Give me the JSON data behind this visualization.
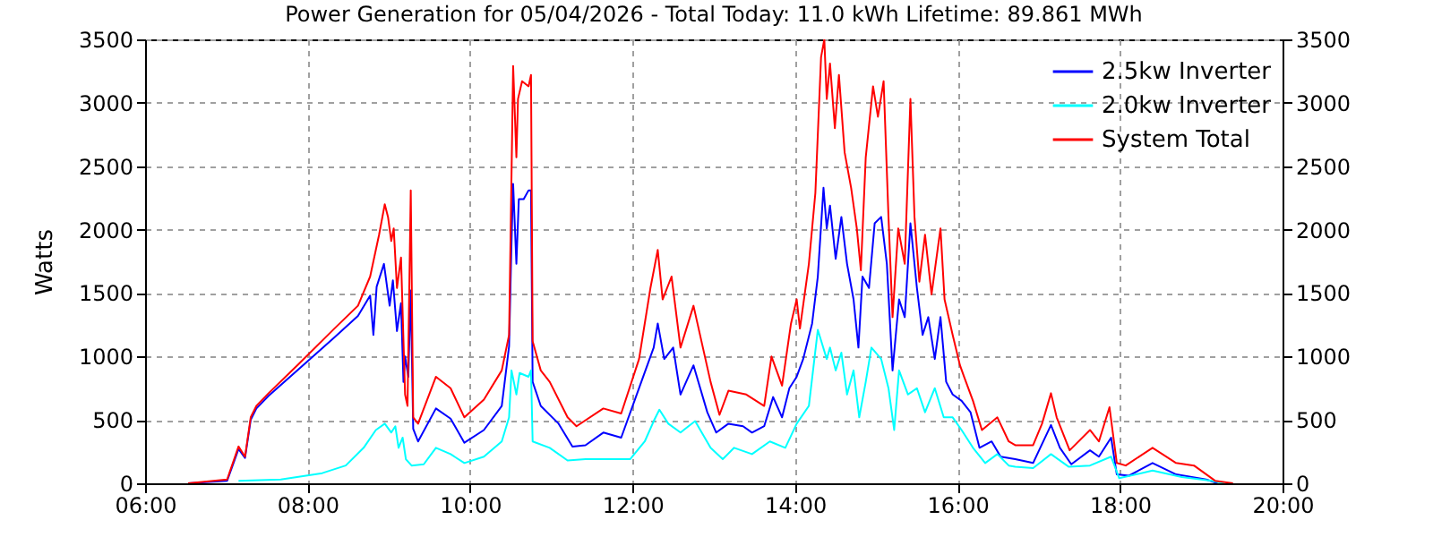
{
  "chart_data": {
    "type": "line",
    "title": "Power Generation for 05/04/2026 - Total Today: 11.0 kWh   Lifetime: 89.861 MWh",
    "ylabel": "Watts",
    "xlim": [
      6,
      20
    ],
    "xticks": [
      {
        "value": 6,
        "label": "06:00"
      },
      {
        "value": 8,
        "label": "08:00"
      },
      {
        "value": 10,
        "label": "10:00"
      },
      {
        "value": 12,
        "label": "12:00"
      },
      {
        "value": 14,
        "label": "14:00"
      },
      {
        "value": 16,
        "label": "16:00"
      },
      {
        "value": 18,
        "label": "18:00"
      },
      {
        "value": 20,
        "label": "20:00"
      }
    ],
    "ylim": [
      0,
      3500
    ],
    "yticks": [
      0,
      500,
      1000,
      1500,
      2000,
      2500,
      3000,
      3500
    ],
    "y2lim": [
      0,
      3500
    ],
    "y2ticks": [
      0,
      500,
      1000,
      1500,
      2000,
      2500,
      3000,
      3500
    ],
    "grid": true,
    "legend": "top right",
    "marker": "none",
    "line_style": "solid",
    "series": [
      {
        "name": "2.5kw Inverter",
        "color": "#0000ff",
        "x": [
          6.53,
          7.01,
          7.15,
          7.23,
          7.3,
          7.37,
          7.52,
          7.89,
          8.33,
          8.62,
          8.77,
          8.81,
          8.85,
          8.94,
          9.01,
          9.05,
          9.1,
          9.15,
          9.18,
          9.2,
          9.24,
          9.27,
          9.3,
          9.36,
          9.58,
          9.76,
          9.93,
          10.17,
          10.39,
          10.48,
          10.51,
          10.53,
          10.57,
          10.6,
          10.66,
          10.72,
          10.75,
          10.77,
          10.87,
          11.09,
          11.26,
          11.42,
          11.64,
          11.86,
          12.08,
          12.26,
          12.31,
          12.39,
          12.5,
          12.59,
          12.75,
          12.92,
          13.03,
          13.18,
          13.36,
          13.47,
          13.62,
          13.73,
          13.84,
          13.93,
          14.02,
          14.1,
          14.21,
          14.28,
          14.35,
          14.39,
          14.43,
          14.5,
          14.57,
          14.64,
          14.72,
          14.78,
          14.83,
          14.91,
          14.98,
          15.06,
          15.13,
          15.2,
          15.28,
          15.35,
          15.42,
          15.5,
          15.57,
          15.64,
          15.72,
          15.79,
          15.86,
          15.94,
          16.05,
          16.16,
          16.27,
          16.42,
          16.53,
          16.71,
          16.93,
          17.15,
          17.26,
          17.4,
          17.63,
          17.74,
          17.89,
          17.96,
          18.11,
          18.4,
          18.69,
          19.06,
          19.2
        ],
        "values": [
          0,
          20,
          270,
          200,
          500,
          590,
          690,
          900,
          1150,
          1320,
          1480,
          1170,
          1550,
          1730,
          1400,
          1600,
          1200,
          1420,
          800,
          1000,
          840,
          1520,
          430,
          330,
          590,
          510,
          320,
          420,
          610,
          1080,
          1900,
          2360,
          1730,
          2240,
          2240,
          2310,
          2310,
          800,
          610,
          470,
          290,
          300,
          400,
          360,
          750,
          1070,
          1260,
          980,
          1070,
          700,
          930,
          560,
          400,
          470,
          450,
          400,
          450,
          680,
          520,
          750,
          840,
          980,
          1260,
          1630,
          2330,
          2010,
          2190,
          1770,
          2100,
          1730,
          1450,
          1070,
          1630,
          1540,
          2050,
          2100,
          1730,
          890,
          1450,
          1310,
          2050,
          1540,
          1170,
          1310,
          980,
          1310,
          800,
          700,
          650,
          560,
          280,
          330,
          210,
          190,
          160,
          460,
          280,
          150,
          260,
          210,
          360,
          70,
          60,
          160,
          70,
          30,
          0
        ]
      },
      {
        "name": "2.0kw Inverter",
        "color": "#00ffff",
        "x": [
          7.15,
          7.67,
          8.18,
          8.47,
          8.69,
          8.84,
          8.95,
          9.03,
          9.08,
          9.12,
          9.17,
          9.21,
          9.28,
          9.43,
          9.58,
          9.76,
          9.93,
          10.17,
          10.39,
          10.48,
          10.51,
          10.57,
          10.61,
          10.72,
          10.75,
          10.77,
          10.98,
          11.2,
          11.42,
          11.97,
          12.15,
          12.26,
          12.33,
          12.44,
          12.59,
          12.77,
          12.96,
          13.11,
          13.25,
          13.47,
          13.69,
          13.88,
          14.02,
          14.17,
          14.28,
          14.39,
          14.43,
          14.5,
          14.57,
          14.64,
          14.72,
          14.79,
          14.87,
          14.94,
          15.06,
          15.15,
          15.22,
          15.28,
          15.39,
          15.5,
          15.6,
          15.72,
          15.83,
          15.94,
          16.05,
          16.19,
          16.34,
          16.49,
          16.63,
          16.71,
          16.93,
          17.15,
          17.37,
          17.63,
          17.89,
          17.99,
          18.4,
          18.76,
          19.13,
          19.28
        ],
        "values": [
          20,
          30,
          80,
          140,
          280,
          420,
          470,
          400,
          450,
          280,
          360,
          190,
          140,
          150,
          280,
          230,
          160,
          210,
          330,
          520,
          890,
          700,
          870,
          840,
          890,
          330,
          280,
          180,
          190,
          190,
          330,
          490,
          580,
          470,
          400,
          490,
          280,
          190,
          280,
          230,
          330,
          280,
          470,
          610,
          1210,
          980,
          1070,
          890,
          1030,
          700,
          890,
          520,
          800,
          1070,
          980,
          750,
          420,
          890,
          700,
          750,
          560,
          750,
          520,
          520,
          420,
          280,
          160,
          230,
          140,
          130,
          120,
          230,
          130,
          140,
          210,
          40,
          100,
          50,
          20,
          0
        ]
      },
      {
        "name": "System Total",
        "color": "#ff0000",
        "x": [
          6.53,
          7.01,
          7.15,
          7.23,
          7.3,
          7.37,
          7.52,
          7.89,
          8.33,
          8.62,
          8.77,
          8.88,
          8.95,
          8.99,
          9.03,
          9.06,
          9.1,
          9.15,
          9.2,
          9.23,
          9.27,
          9.3,
          9.36,
          9.58,
          9.76,
          9.93,
          10.17,
          10.39,
          10.48,
          10.51,
          10.53,
          10.57,
          10.59,
          10.64,
          10.72,
          10.75,
          10.77,
          10.87,
          10.98,
          11.2,
          11.31,
          11.64,
          11.86,
          12.08,
          12.22,
          12.31,
          12.37,
          12.48,
          12.59,
          12.75,
          12.96,
          13.07,
          13.18,
          13.4,
          13.62,
          13.71,
          13.84,
          13.95,
          14.02,
          14.06,
          14.17,
          14.25,
          14.32,
          14.36,
          14.39,
          14.43,
          14.49,
          14.54,
          14.61,
          14.69,
          14.76,
          14.81,
          14.87,
          14.96,
          15.02,
          15.09,
          15.15,
          15.2,
          15.27,
          15.35,
          15.42,
          15.47,
          15.53,
          15.6,
          15.68,
          15.79,
          15.84,
          15.94,
          16.03,
          16.08,
          16.19,
          16.3,
          16.49,
          16.63,
          16.71,
          16.93,
          17.04,
          17.15,
          17.22,
          17.38,
          17.63,
          17.74,
          17.87,
          17.96,
          18.07,
          18.4,
          18.69,
          18.91,
          19.17,
          19.39
        ],
        "values": [
          0,
          30,
          290,
          210,
          520,
          610,
          710,
          940,
          1220,
          1400,
          1630,
          1960,
          2200,
          2100,
          1910,
          2010,
          1540,
          1780,
          700,
          610,
          2310,
          520,
          470,
          840,
          750,
          520,
          660,
          890,
          1170,
          2430,
          3290,
          2570,
          3030,
          3170,
          3130,
          3220,
          1120,
          890,
          800,
          520,
          450,
          590,
          550,
          980,
          1540,
          1840,
          1450,
          1630,
          1070,
          1400,
          800,
          540,
          730,
          700,
          610,
          1000,
          770,
          1260,
          1450,
          1220,
          1730,
          2290,
          3360,
          3500,
          3030,
          3310,
          2800,
          3220,
          2610,
          2330,
          2010,
          1680,
          2570,
          3130,
          2890,
          3170,
          2100,
          1310,
          2010,
          1730,
          3030,
          2100,
          1590,
          1960,
          1490,
          2010,
          1450,
          1170,
          930,
          840,
          650,
          420,
          520,
          330,
          300,
          300,
          470,
          710,
          520,
          260,
          420,
          330,
          600,
          160,
          140,
          280,
          160,
          140,
          20,
          0
        ]
      }
    ]
  }
}
